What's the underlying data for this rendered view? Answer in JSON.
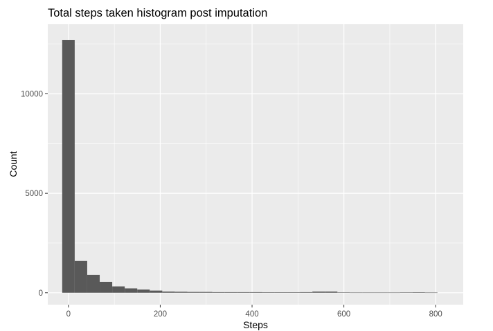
{
  "chart_data": {
    "type": "bar",
    "title": "Total steps taken histogram post imputation",
    "xlabel": "Steps",
    "ylabel": "Count",
    "xlim": [
      -45,
      860
    ],
    "ylim": [
      -600,
      13500
    ],
    "x_ticks": [
      0,
      200,
      400,
      600,
      800
    ],
    "y_ticks": [
      0,
      5000,
      10000
    ],
    "x_tick_labels": [
      "0",
      "200",
      "400",
      "600",
      "800"
    ],
    "y_tick_labels": [
      "0",
      "5000",
      "10000"
    ],
    "bin_width": 27.25,
    "bin_start": -13.6,
    "values": [
      12700,
      1600,
      900,
      550,
      320,
      220,
      160,
      110,
      60,
      50,
      40,
      40,
      30,
      30,
      30,
      30,
      25,
      25,
      25,
      30,
      60,
      60,
      15,
      10,
      10,
      10,
      10,
      15,
      25,
      10
    ],
    "grid": true,
    "panel_bg": "#ebebeb",
    "bar_color": "#595959",
    "grid_color": "#ffffff"
  }
}
